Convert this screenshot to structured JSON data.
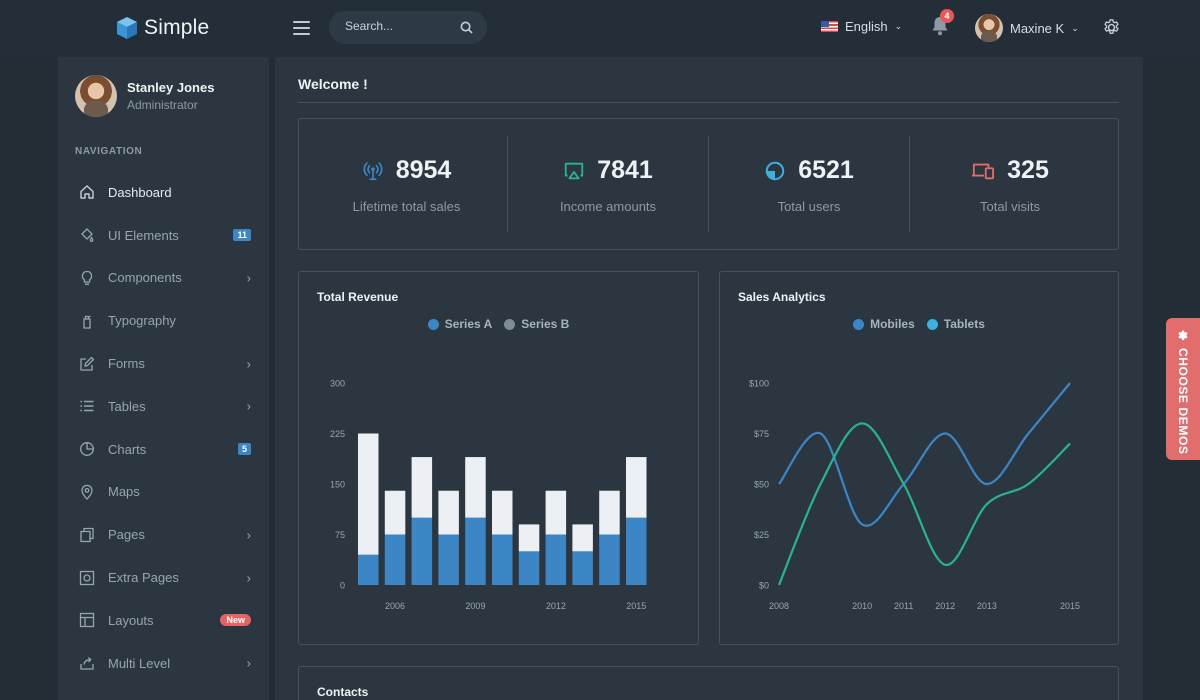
{
  "app": {
    "name": "Simple"
  },
  "header": {
    "search_placeholder": "Search...",
    "language": "English",
    "notification_count": "4",
    "user_name": "Maxine K"
  },
  "sidebar": {
    "profile": {
      "name": "Stanley Jones",
      "role": "Administrator"
    },
    "heading": "NAVIGATION",
    "items": [
      {
        "label": "Dashboard",
        "icon": "home-icon"
      },
      {
        "label": "UI Elements",
        "icon": "paint-bucket-icon",
        "badge": "11"
      },
      {
        "label": "Components",
        "icon": "lightbulb-icon",
        "chevron": "›"
      },
      {
        "label": "Typography",
        "icon": "spray-icon"
      },
      {
        "label": "Forms",
        "icon": "edit-icon",
        "chevron": "›"
      },
      {
        "label": "Tables",
        "icon": "list-icon",
        "chevron": "›"
      },
      {
        "label": "Charts",
        "icon": "pie-chart-icon",
        "badge": "5"
      },
      {
        "label": "Maps",
        "icon": "map-pin-icon"
      },
      {
        "label": "Pages",
        "icon": "copy-icon",
        "chevron": "›"
      },
      {
        "label": "Extra Pages",
        "icon": "target-icon",
        "chevron": "›"
      },
      {
        "label": "Layouts",
        "icon": "layout-icon",
        "badge": "New"
      },
      {
        "label": "Multi Level",
        "icon": "share-icon",
        "chevron": "›"
      }
    ]
  },
  "main": {
    "title": "Welcome !",
    "stats": [
      {
        "value": "8954",
        "label": "Lifetime total sales",
        "icon": "radio-icon",
        "color": "#3d86c6"
      },
      {
        "value": "7841",
        "label": "Income amounts",
        "icon": "airplay-icon",
        "color": "#2bb28f"
      },
      {
        "value": "6521",
        "label": "Total users",
        "icon": "pie-icon",
        "color": "#3db0e0"
      },
      {
        "value": "325",
        "label": "Total visits",
        "icon": "devices-icon",
        "color": "#e26d6d"
      }
    ],
    "contacts_title": "Contacts"
  },
  "demo_tab": {
    "label": "CHOOSE DEMOS"
  },
  "chart_data": [
    {
      "type": "bar",
      "stacked": true,
      "title": "Total Revenue",
      "categories": [
        "2005",
        "2006",
        "2007",
        "2008",
        "2009",
        "2010",
        "2011",
        "2012",
        "2013",
        "2014",
        "2015"
      ],
      "x_tick_labels": [
        "2006",
        "2009",
        "2012",
        "2015"
      ],
      "y_ticks": [
        "0",
        "75",
        "150",
        "225",
        "300"
      ],
      "ylim": [
        0,
        300
      ],
      "series": [
        {
          "name": "Series A",
          "color": "#3d86c6",
          "values": [
            45,
            75,
            100,
            75,
            100,
            75,
            50,
            75,
            50,
            75,
            100
          ]
        },
        {
          "name": "Series B",
          "color": "#eceff3",
          "values": [
            180,
            65,
            90,
            65,
            90,
            65,
            40,
            65,
            40,
            65,
            90
          ]
        }
      ],
      "legend_position": "top-center",
      "grid": false
    },
    {
      "type": "line",
      "smooth": true,
      "title": "Sales Analytics",
      "x": [
        2008,
        2009,
        2010,
        2011,
        2012,
        2013,
        2014,
        2015
      ],
      "x_tick_labels": [
        "2008",
        "2010",
        "2011",
        "2012",
        "2013",
        "2015"
      ],
      "y_ticks": [
        "$0",
        "$25",
        "$50",
        "$75",
        "$100"
      ],
      "ylim": [
        0,
        100
      ],
      "series": [
        {
          "name": "Mobiles",
          "color": "#3d86c6",
          "values": [
            50,
            75,
            30,
            50,
            75,
            50,
            75,
            100
          ]
        },
        {
          "name": "Tablets",
          "color": "#2bb28f",
          "values": [
            0,
            50,
            80,
            50,
            10,
            40,
            50,
            70
          ]
        }
      ],
      "legend_position": "top-center",
      "grid": false
    }
  ]
}
